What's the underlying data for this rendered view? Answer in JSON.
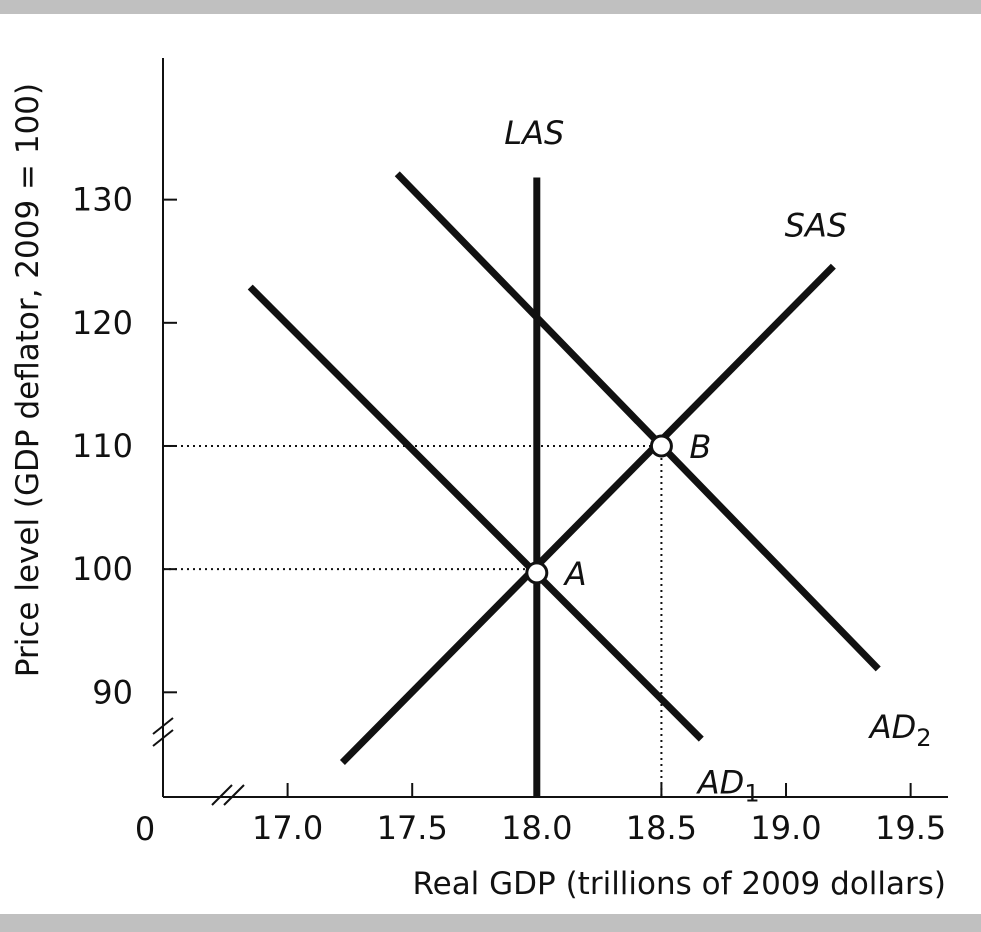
{
  "chart_data": {
    "type": "line",
    "xlabel": "Real GDP (trillions of 2009 dollars)",
    "ylabel": "Price level (GDP deflator, 2009 = 100)",
    "origin_label": "0",
    "xlim": [
      16.5,
      19.65
    ],
    "ylim": [
      81.5,
      141.5
    ],
    "x_ticks": [
      17.0,
      17.5,
      18.0,
      18.5,
      19.0,
      19.5
    ],
    "x_tick_labels": [
      "17.0",
      "17.5",
      "18.0",
      "18.5",
      "19.0",
      "19.5"
    ],
    "y_ticks": [
      90,
      100,
      110,
      120,
      130
    ],
    "y_tick_labels": [
      "90",
      "100",
      "110",
      "120",
      "130"
    ],
    "axis_breaks": [
      "x",
      "y"
    ],
    "grid": false,
    "series": [
      {
        "name": "LAS",
        "label_main": "LAS",
        "label_sub": "",
        "points": [
          [
            18.0,
            131.8
          ],
          [
            18.0,
            81.5
          ]
        ],
        "label_at": [
          17.99,
          134.5
        ]
      },
      {
        "name": "SAS",
        "label_main": "SAS",
        "label_sub": "",
        "points": [
          [
            17.22,
            84.3
          ],
          [
            19.19,
            124.6
          ]
        ],
        "label_at": [
          19.12,
          127.0
        ]
      },
      {
        "name": "AD1",
        "label_main": "AD",
        "label_sub": "1",
        "points": [
          [
            16.85,
            122.9
          ],
          [
            18.66,
            86.2
          ]
        ],
        "label_at": [
          18.77,
          81.8
        ]
      },
      {
        "name": "AD2",
        "label_main": "AD",
        "label_sub": "2",
        "points": [
          [
            17.44,
            132.1
          ],
          [
            19.37,
            91.9
          ]
        ],
        "label_at": [
          19.46,
          86.3
        ]
      }
    ],
    "points": [
      {
        "label": "A",
        "x": 18.0,
        "y": 99.7
      },
      {
        "label": "B",
        "x": 18.5,
        "y": 110.0
      }
    ],
    "guides": [
      {
        "from": [
          16.5,
          100.0
        ],
        "to": [
          18.0,
          100.0
        ]
      },
      {
        "from": [
          16.5,
          110.0
        ],
        "to": [
          18.5,
          110.0
        ]
      },
      {
        "from": [
          18.5,
          110.0
        ],
        "to": [
          18.5,
          81.5
        ]
      }
    ]
  }
}
